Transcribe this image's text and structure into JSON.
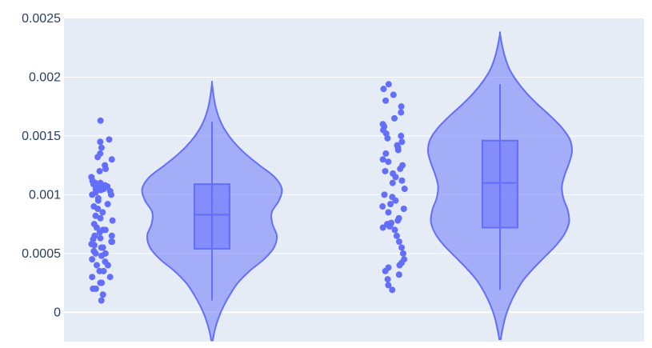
{
  "chart_data": {
    "type": "violin",
    "title": "",
    "xlabel": "",
    "ylabel": "",
    "ylim": [
      -0.00025,
      0.0025
    ],
    "grid": true,
    "yticks": [
      0,
      0.0005,
      0.001,
      0.0015,
      0.002,
      0.0025
    ],
    "ytick_labels": [
      "0",
      "0.0005",
      "0.001",
      "0.0015",
      "0.002",
      "0.0025"
    ],
    "colors": {
      "plot_bg": "#e5ecf6",
      "grid": "#ffffff",
      "violin_fill": "#636efa",
      "violin_line": "#636efa",
      "points": "#636efa",
      "tick_text": "#2a3f5f"
    },
    "series": [
      {
        "box": {
          "min": 0.0001,
          "q1": 0.00054,
          "median": 0.00083,
          "q3": 0.00109,
          "max": 0.00162
        },
        "kde_range": [
          -0.00024,
          0.00195
        ],
        "density": [
          [
            -0.00024,
            0.01
          ],
          [
            -0.00015,
            0.04
          ],
          [
            -5e-05,
            0.09
          ],
          [
            5e-05,
            0.16
          ],
          [
            0.00015,
            0.25
          ],
          [
            0.00025,
            0.36
          ],
          [
            0.00035,
            0.52
          ],
          [
            0.00045,
            0.72
          ],
          [
            0.00055,
            0.86
          ],
          [
            0.00065,
            0.9
          ],
          [
            0.00075,
            0.84
          ],
          [
            0.00085,
            0.83
          ],
          [
            0.00095,
            0.93
          ],
          [
            0.00105,
            0.97
          ],
          [
            0.00115,
            0.87
          ],
          [
            0.00125,
            0.66
          ],
          [
            0.00135,
            0.46
          ],
          [
            0.00145,
            0.3
          ],
          [
            0.00155,
            0.18
          ],
          [
            0.00165,
            0.1
          ],
          [
            0.00175,
            0.05
          ],
          [
            0.00185,
            0.02
          ],
          [
            0.00195,
            0.0
          ]
        ],
        "points": [
          0.0001,
          0.00015,
          0.0002,
          0.0002,
          0.00025,
          0.00025,
          0.0003,
          0.0003,
          0.00035,
          0.00035,
          0.0004,
          0.0004,
          0.00043,
          0.00045,
          0.00048,
          0.0005,
          0.0005,
          0.00052,
          0.00055,
          0.00055,
          0.00057,
          0.00058,
          0.0006,
          0.0006,
          0.00062,
          0.00063,
          0.00065,
          0.00065,
          0.00068,
          0.0007,
          0.0007,
          0.00072,
          0.00075,
          0.00078,
          0.0008,
          0.00082,
          0.00085,
          0.00088,
          0.0009,
          0.00092,
          0.00095,
          0.00097,
          0.001,
          0.001,
          0.00102,
          0.00103,
          0.00104,
          0.00105,
          0.00105,
          0.00106,
          0.00107,
          0.00108,
          0.00109,
          0.0011,
          0.0011,
          0.00112,
          0.00115,
          0.0012,
          0.00122,
          0.00125,
          0.0013,
          0.00132,
          0.00135,
          0.0014,
          0.00145,
          0.00147,
          0.00163
        ]
      },
      {
        "box": {
          "min": 0.00019,
          "q1": 0.00072,
          "median": 0.0011,
          "q3": 0.00146,
          "max": 0.00194
        },
        "kde_range": [
          -0.00023,
          0.00237
        ],
        "density": [
          [
            -0.00023,
            0.01
          ],
          [
            -0.00013,
            0.04
          ],
          [
            -3e-05,
            0.08
          ],
          [
            7e-05,
            0.14
          ],
          [
            0.00017,
            0.22
          ],
          [
            0.00027,
            0.32
          ],
          [
            0.00037,
            0.46
          ],
          [
            0.00047,
            0.62
          ],
          [
            0.00057,
            0.78
          ],
          [
            0.00067,
            0.9
          ],
          [
            0.00077,
            0.96
          ],
          [
            0.00087,
            0.94
          ],
          [
            0.00097,
            0.88
          ],
          [
            0.00107,
            0.86
          ],
          [
            0.00117,
            0.9
          ],
          [
            0.00127,
            0.96
          ],
          [
            0.00137,
            1.0
          ],
          [
            0.00147,
            0.97
          ],
          [
            0.00157,
            0.86
          ],
          [
            0.00167,
            0.7
          ],
          [
            0.00177,
            0.52
          ],
          [
            0.00187,
            0.36
          ],
          [
            0.00197,
            0.23
          ],
          [
            0.00207,
            0.13
          ],
          [
            0.00217,
            0.07
          ],
          [
            0.00227,
            0.03
          ],
          [
            0.00237,
            0.0
          ]
        ],
        "points": [
          0.00019,
          0.00023,
          0.00028,
          0.00032,
          0.00035,
          0.00038,
          0.0004,
          0.00042,
          0.00045,
          0.0005,
          0.00055,
          0.0006,
          0.00065,
          0.0007,
          0.00072,
          0.00073,
          0.00074,
          0.00075,
          0.00076,
          0.00078,
          0.0008,
          0.00085,
          0.00088,
          0.0009,
          0.00092,
          0.00095,
          0.00098,
          0.001,
          0.00105,
          0.0011,
          0.00112,
          0.00115,
          0.00118,
          0.0012,
          0.00122,
          0.00125,
          0.00128,
          0.0013,
          0.00135,
          0.00138,
          0.0014,
          0.00142,
          0.00145,
          0.00148,
          0.0015,
          0.00152,
          0.00155,
          0.00158,
          0.0016,
          0.00165,
          0.0017,
          0.00175,
          0.0018,
          0.00185,
          0.0019,
          0.00194
        ]
      }
    ]
  }
}
